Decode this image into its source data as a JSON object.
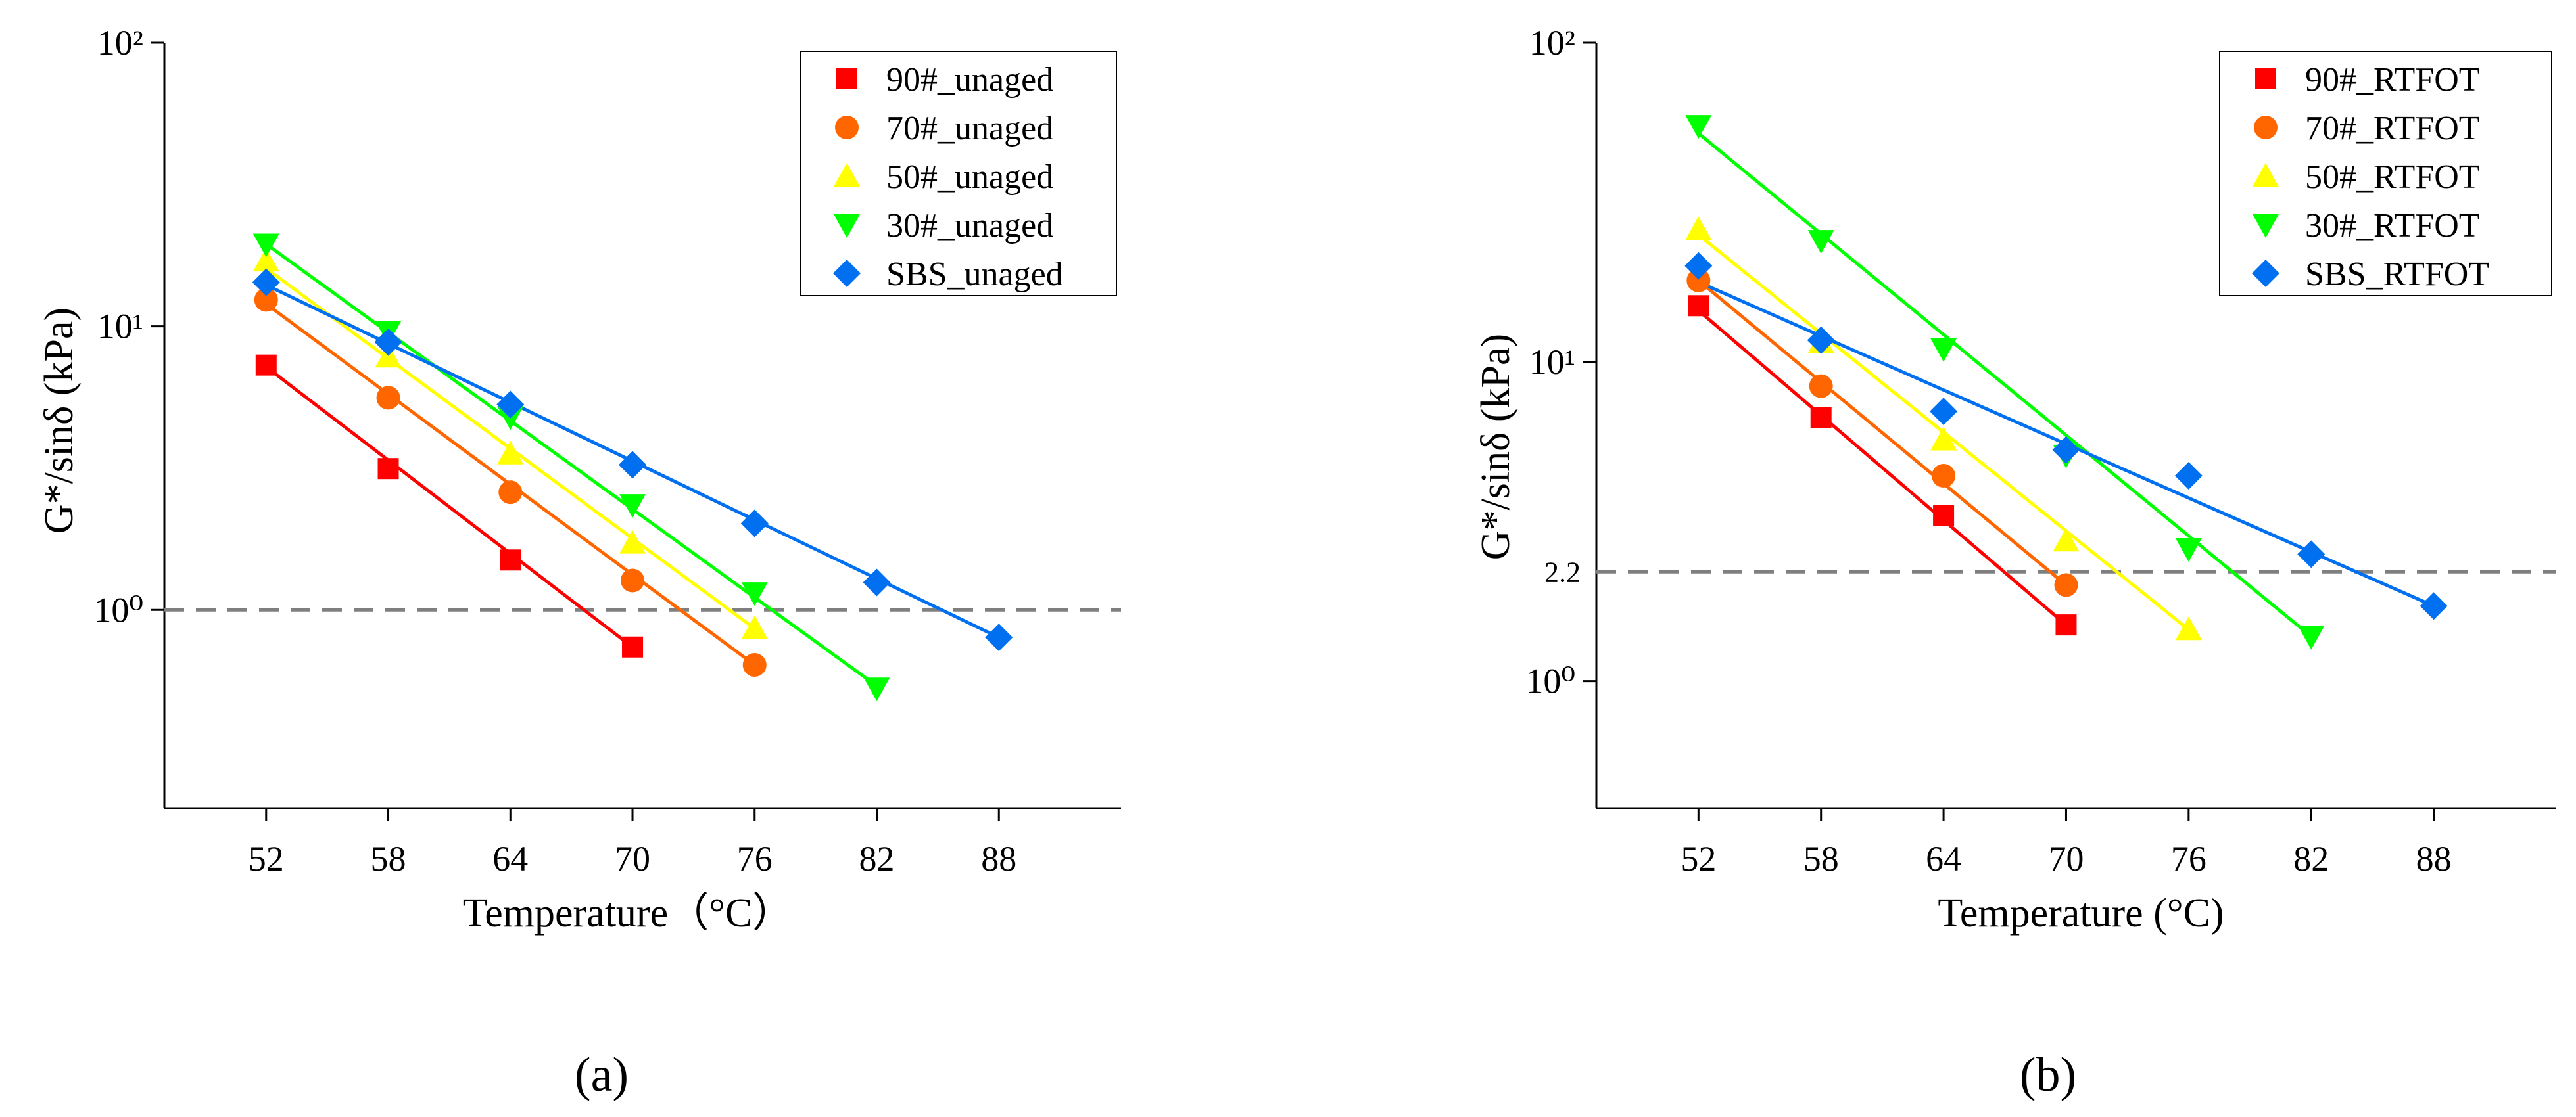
{
  "chart_data": [
    {
      "type": "scatter",
      "panel_label": "(a)",
      "xlabel": "Temperature（°C）",
      "ylabel": "G*/sinδ (kPa)",
      "yscale": "log",
      "xlim": [
        47,
        94
      ],
      "ylim": [
        0.2,
        100
      ],
      "xticks": [
        52,
        58,
        64,
        70,
        76,
        82,
        88
      ],
      "yticks": [
        {
          "value": 1,
          "label": "10⁰"
        },
        {
          "value": 10,
          "label": "10¹"
        },
        {
          "value": 100,
          "label": "10²"
        }
      ],
      "reference_line": {
        "value": 1.0,
        "label": ""
      },
      "legend_position": "top-right",
      "series": [
        {
          "name": "90#_unaged",
          "color": "#ff0000",
          "marker": "square",
          "x": [
            52,
            58,
            64,
            70
          ],
          "y": [
            7.3,
            3.15,
            1.5,
            0.74
          ],
          "fit": [
            [
              52,
              7.2
            ],
            [
              70,
              0.74
            ]
          ]
        },
        {
          "name": "70#_unaged",
          "color": "#ff6600",
          "marker": "circle",
          "x": [
            52,
            58,
            64,
            70,
            76
          ],
          "y": [
            12.4,
            5.6,
            2.6,
            1.27,
            0.64
          ],
          "fit": [
            [
              52,
              12.0
            ],
            [
              76,
              0.64
            ]
          ]
        },
        {
          "name": "50#_unaged",
          "color": "#ffff00",
          "marker": "triangle-up",
          "x": [
            52,
            58,
            64,
            70,
            76
          ],
          "y": [
            17.0,
            7.8,
            3.55,
            1.72,
            0.86
          ],
          "fit": [
            [
              52,
              16.0
            ],
            [
              76,
              0.86
            ]
          ]
        },
        {
          "name": "30#_unaged",
          "color": "#00ff00",
          "marker": "triangle-down",
          "x": [
            52,
            58,
            64,
            70,
            76,
            82
          ],
          "y": [
            19.5,
            9.6,
            4.8,
            2.35,
            1.15,
            0.53
          ],
          "fit": [
            [
              52,
              19.5
            ],
            [
              82,
              0.54
            ]
          ]
        },
        {
          "name": "SBS_unaged",
          "color": "#0070f0",
          "marker": "diamond",
          "x": [
            52,
            58,
            64,
            70,
            76,
            82,
            88
          ],
          "y": [
            14.3,
            8.8,
            5.3,
            3.25,
            2.02,
            1.25,
            0.8
          ],
          "fit": [
            [
              52,
              14.0
            ],
            [
              88,
              0.8
            ]
          ]
        }
      ]
    },
    {
      "type": "scatter",
      "panel_label": "(b)",
      "xlabel": "Temperature (°C)",
      "ylabel": "G*/sinδ (kPa)",
      "yscale": "log",
      "xlim": [
        47,
        94
      ],
      "ylim": [
        0.4,
        100
      ],
      "xticks": [
        52,
        58,
        64,
        70,
        76,
        82,
        88
      ],
      "yticks": [
        {
          "value": 1,
          "label": "10⁰"
        },
        {
          "value": 10,
          "label": "10¹"
        },
        {
          "value": 100,
          "label": "10²"
        }
      ],
      "reference_line": {
        "value": 2.2,
        "label": "2.2"
      },
      "legend_position": "top-right",
      "series": [
        {
          "name": "90#_RTFOT",
          "color": "#ff0000",
          "marker": "square",
          "x": [
            52,
            58,
            64,
            70
          ],
          "y": [
            15.0,
            6.7,
            3.3,
            1.5
          ],
          "fit": [
            [
              52,
              14.5
            ],
            [
              70,
              1.5
            ]
          ]
        },
        {
          "name": "70#_RTFOT",
          "color": "#ff6600",
          "marker": "circle",
          "x": [
            52,
            58,
            64,
            70
          ],
          "y": [
            18.0,
            8.4,
            4.4,
            2.0
          ],
          "fit": [
            [
              52,
              18.0
            ],
            [
              70,
              2.0
            ]
          ]
        },
        {
          "name": "50#_RTFOT",
          "color": "#ffff00",
          "marker": "triangle-up",
          "x": [
            52,
            58,
            64,
            70,
            76
          ],
          "y": [
            26.0,
            11.5,
            5.7,
            2.75,
            1.45
          ],
          "fit": [
            [
              52,
              25.0
            ],
            [
              76,
              1.45
            ]
          ]
        },
        {
          "name": "30#_RTFOT",
          "color": "#00ff00",
          "marker": "triangle-down",
          "x": [
            52,
            58,
            64,
            70,
            76,
            82
          ],
          "y": [
            55.0,
            24.0,
            11.0,
            5.1,
            2.6,
            1.38
          ],
          "fit": [
            [
              52,
              52.0
            ],
            [
              82,
              1.38
            ]
          ]
        },
        {
          "name": "SBS_RTFOT",
          "color": "#0070f0",
          "marker": "diamond",
          "x": [
            52,
            58,
            64,
            70,
            76,
            82,
            88
          ],
          "y": [
            20.0,
            11.7,
            7.0,
            5.3,
            4.4,
            2.5,
            1.72
          ],
          "fit": [
            [
              52,
              17.8
            ],
            [
              88,
              1.72
            ]
          ]
        }
      ]
    }
  ]
}
